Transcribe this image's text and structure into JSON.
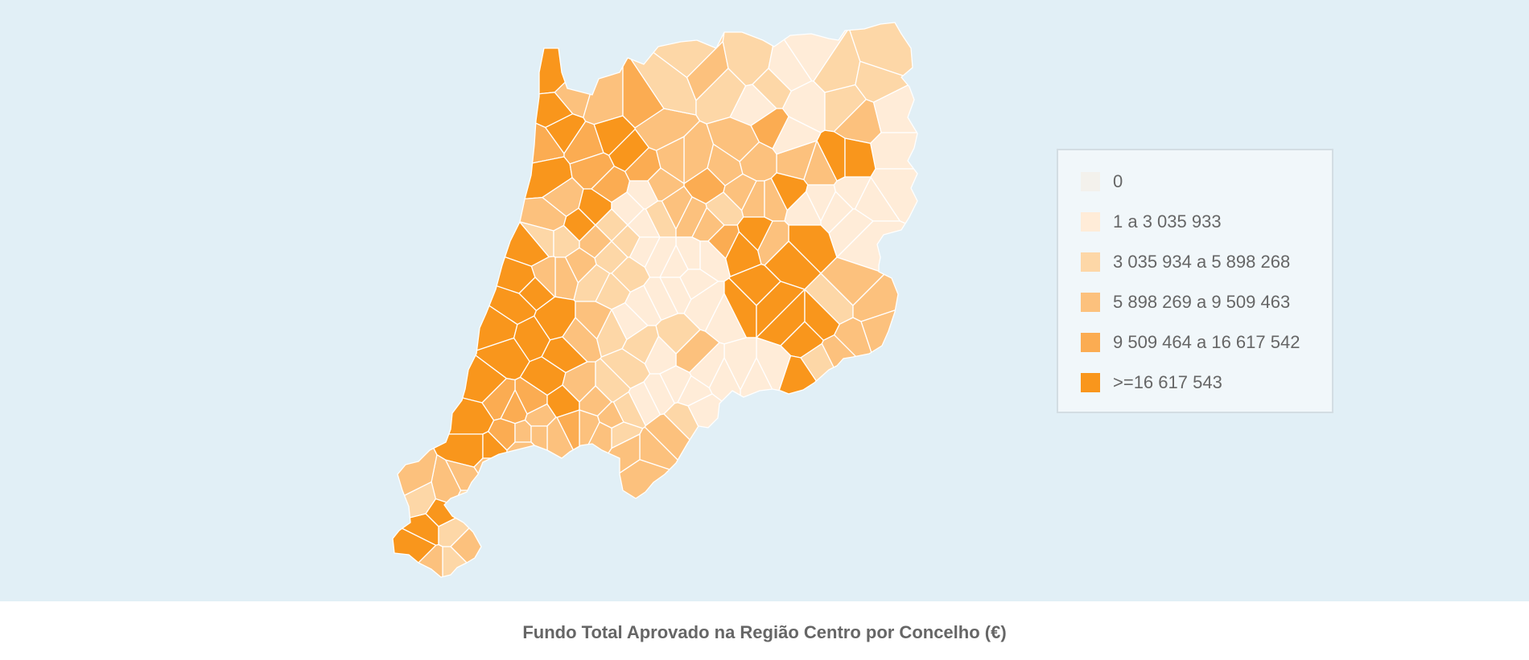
{
  "map": {
    "title": "Fundo Total Aprovado na Região Centro por Concelho (€)",
    "colors": {
      "background": "#e1eff6",
      "border": "#ffffff"
    }
  },
  "legend": {
    "items": [
      {
        "label": "0",
        "color": "#f3f1ec"
      },
      {
        "label": "1 a 3 035 933",
        "color": "#ffecd8"
      },
      {
        "label": "3 035 934 a 5 898 268",
        "color": "#fdd7a7"
      },
      {
        "label": "5 898 269 a 9 509 463",
        "color": "#fcc17d"
      },
      {
        "label": "9 509 464 a 16 617 542",
        "color": "#fbac52"
      },
      {
        "label": ">=16 617 543",
        "color": "#f9961c"
      }
    ]
  }
}
